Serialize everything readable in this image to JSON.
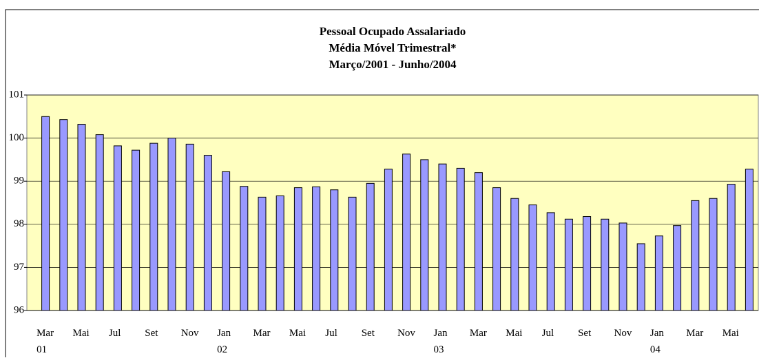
{
  "chart_data": {
    "type": "bar",
    "title": [
      "Pessoal Ocupado Assalariado",
      "Média Móvel Trimestral*",
      "Março/2001 - Junho/2004"
    ],
    "categories": [
      "Mar\n01",
      null,
      "Mai",
      null,
      "Jul",
      null,
      "Set",
      null,
      "Nov",
      null,
      "Jan\n02",
      null,
      "Mar",
      null,
      "Mai",
      null,
      "Jul",
      null,
      "Set",
      null,
      "Nov",
      null,
      "Jan\n03",
      null,
      "Mar",
      null,
      "Mai",
      null,
      "Jul",
      null,
      "Set",
      null,
      "Nov",
      null,
      "Jan\n04",
      null,
      "Mar",
      null,
      "Mai",
      null
    ],
    "values": [
      100.5,
      100.43,
      100.32,
      100.08,
      99.82,
      99.72,
      99.88,
      100.0,
      99.86,
      99.6,
      99.22,
      98.88,
      98.63,
      98.66,
      98.85,
      98.87,
      98.8,
      98.63,
      98.95,
      99.28,
      99.63,
      99.5,
      99.4,
      99.3,
      99.2,
      98.85,
      98.6,
      98.45,
      98.27,
      98.12,
      98.18,
      98.12,
      98.03,
      97.55,
      97.73,
      97.97,
      98.55,
      98.6,
      98.93,
      99.28
    ],
    "color": "#9999ff",
    "ylim": [
      96,
      101
    ],
    "yticks": [
      96,
      97,
      98,
      99,
      100,
      101
    ],
    "grid": true
  }
}
